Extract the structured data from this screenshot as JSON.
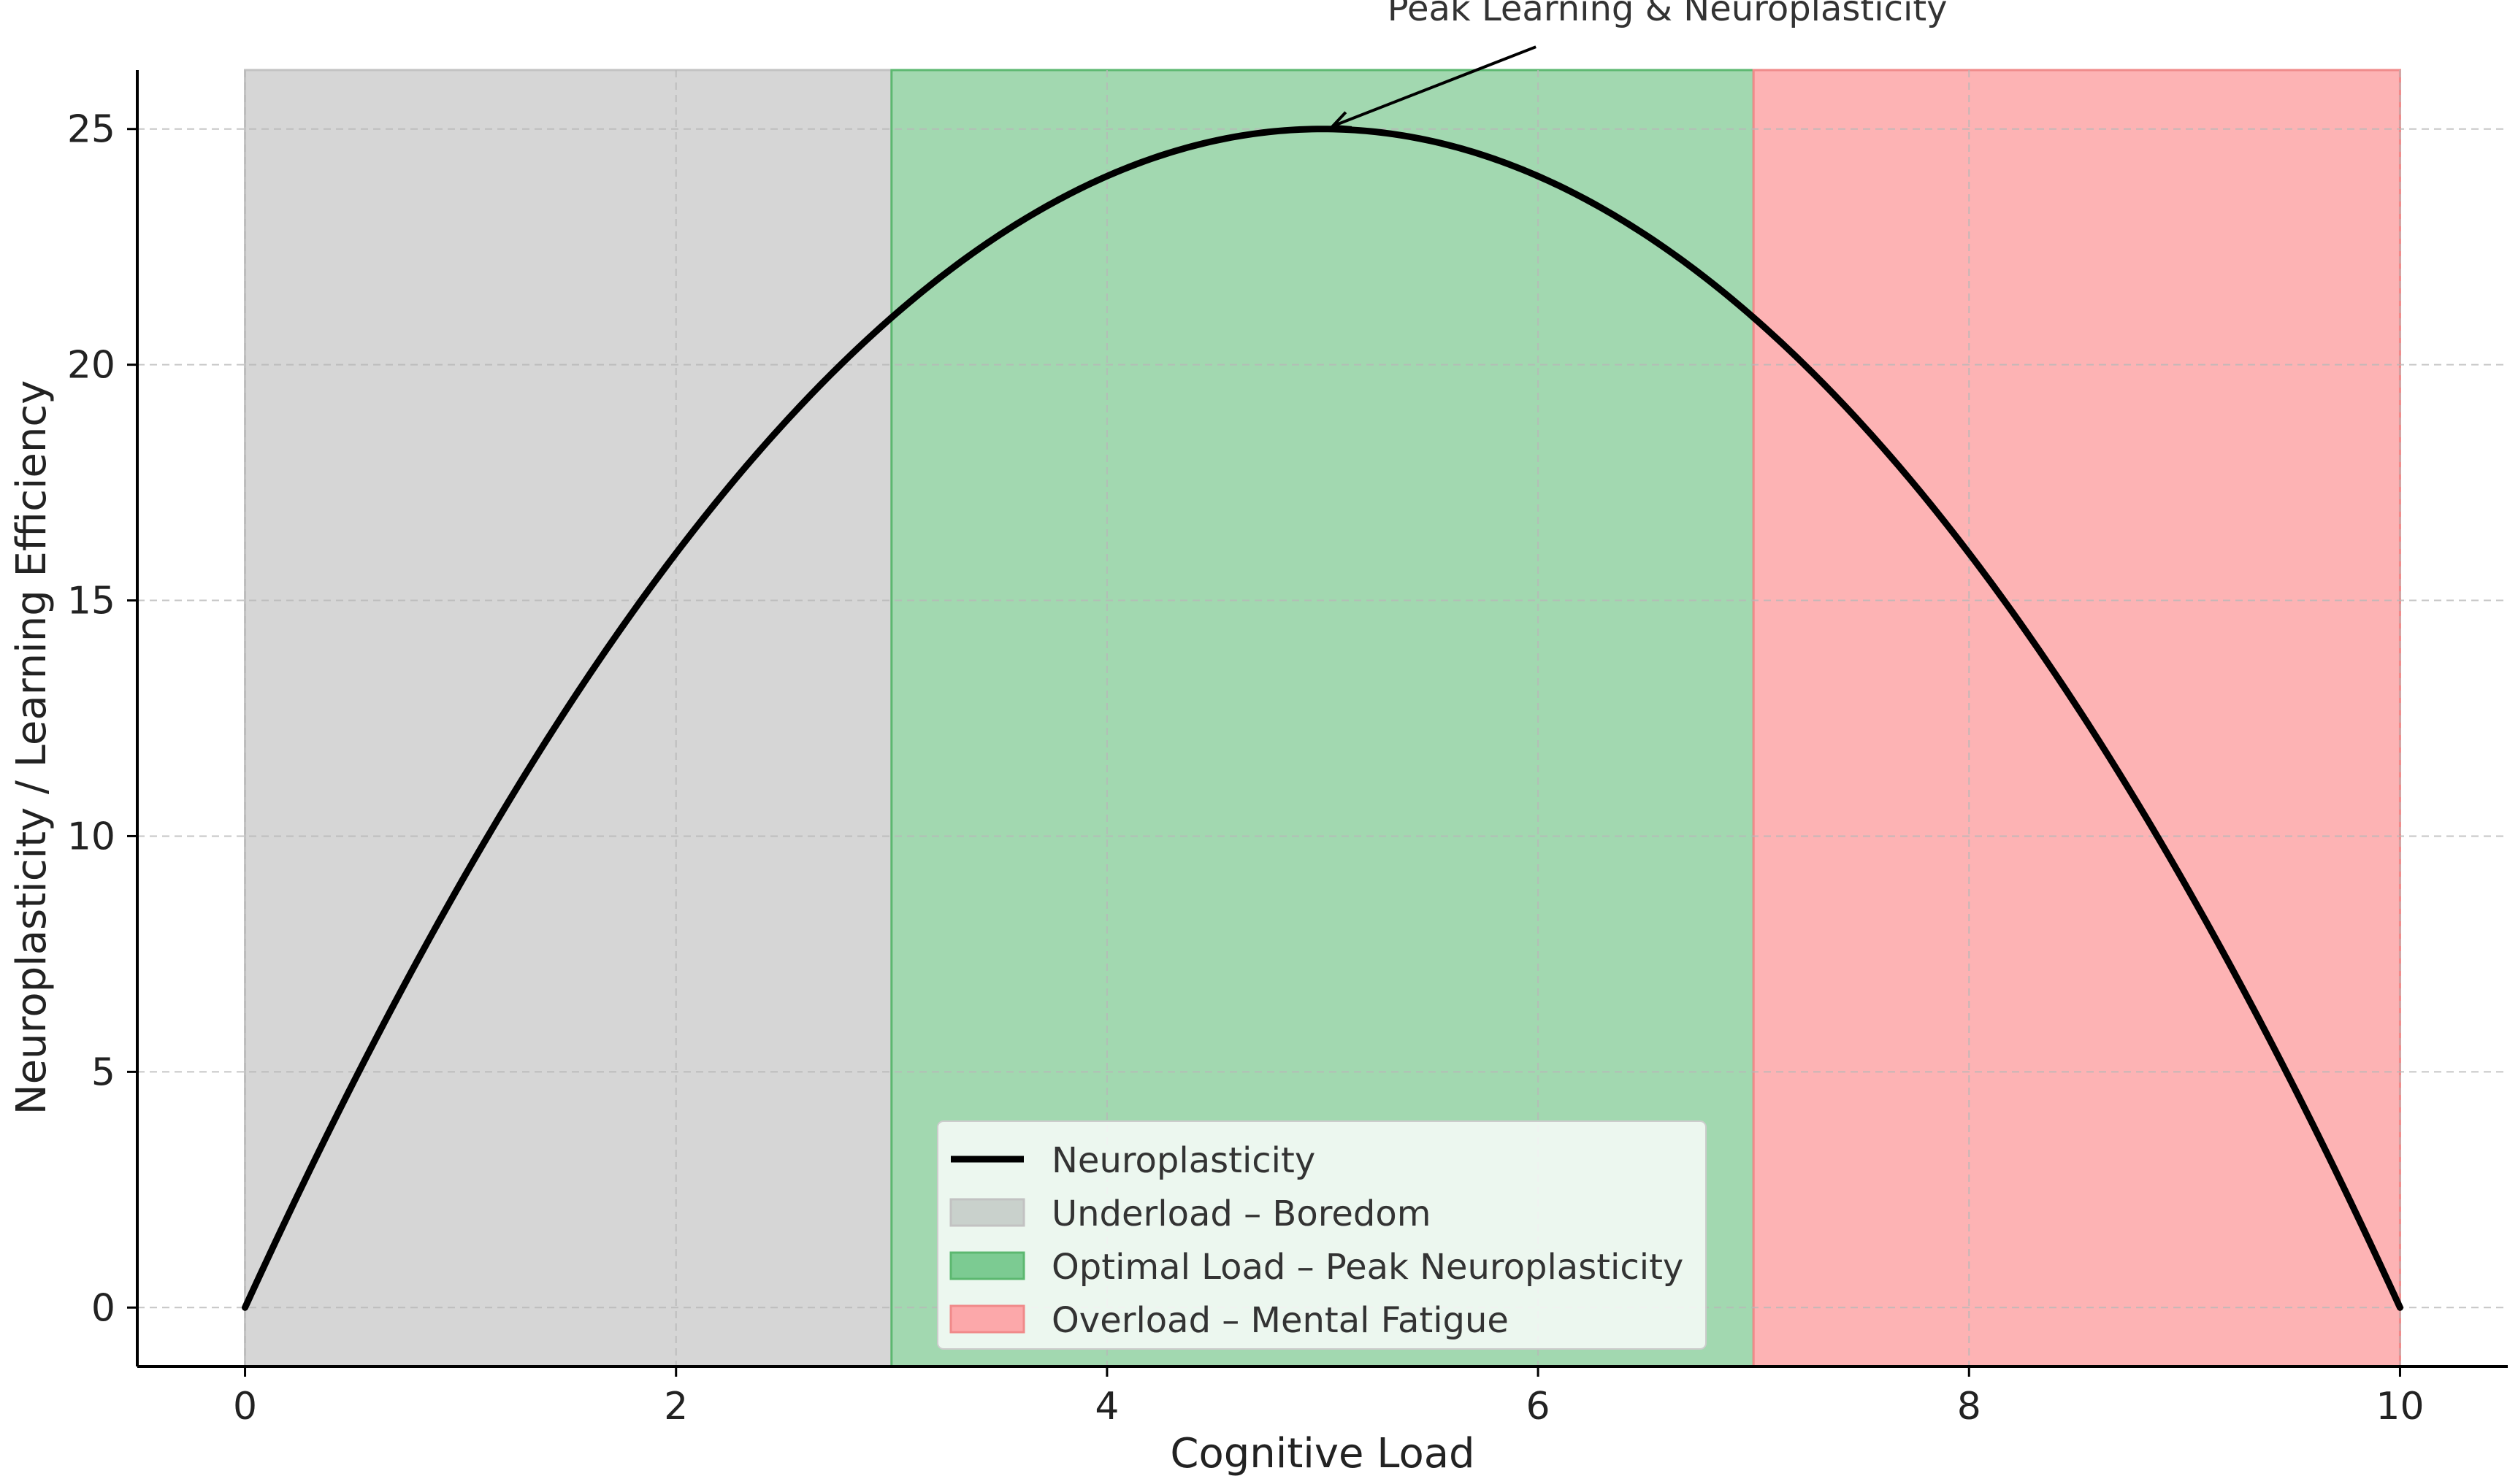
{
  "chart_data": {
    "type": "line",
    "title": "",
    "xlabel": "Cognitive Load",
    "ylabel": "Neuroplasticity / Learning Efficiency",
    "xlim": [
      -0.5,
      10.5
    ],
    "ylim": [
      -1.25,
      26.25
    ],
    "xticks": [
      0,
      2,
      4,
      6,
      8,
      10
    ],
    "yticks": [
      0,
      5,
      10,
      15,
      20,
      25
    ],
    "grid": true,
    "legend_position": "bottom-center",
    "series": [
      {
        "name": "Neuroplasticity",
        "color": "#000000",
        "function": "x * (10 - x)",
        "x": [
          0,
          0.5,
          1,
          1.5,
          2,
          2.5,
          3,
          3.5,
          4,
          4.5,
          5,
          5.5,
          6,
          6.5,
          7,
          7.5,
          8,
          8.5,
          9,
          9.5,
          10
        ],
        "y": [
          0,
          4.75,
          9,
          12.75,
          16,
          18.75,
          21,
          22.75,
          24,
          24.75,
          25,
          24.75,
          24,
          22.75,
          21,
          18.75,
          16,
          12.75,
          9,
          4.75,
          0
        ]
      }
    ],
    "regions": [
      {
        "name": "Underload – Boredom",
        "x_start": 0,
        "x_end": 3,
        "color": "#d6d6d6",
        "legend_color": "#c9d1cc",
        "edge_color": "#c2c2c2"
      },
      {
        "name": "Optimal Load – Peak Neuroplasticity",
        "x_start": 3,
        "x_end": 7,
        "color": "#a2d8b0",
        "legend_color": "#7ccb92",
        "edge_color": "#5cb870"
      },
      {
        "name": "Overload – Mental Fatigue",
        "x_start": 7,
        "x_end": 10,
        "color": "#fdb3b4",
        "legend_color": "#fca8aa",
        "edge_color": "#f08a8a"
      }
    ],
    "annotation": {
      "text": "Peak Learning & Neuroplasticity",
      "point": [
        5,
        25
      ],
      "text_anchor_data": [
        6.6,
        27.3
      ]
    }
  }
}
